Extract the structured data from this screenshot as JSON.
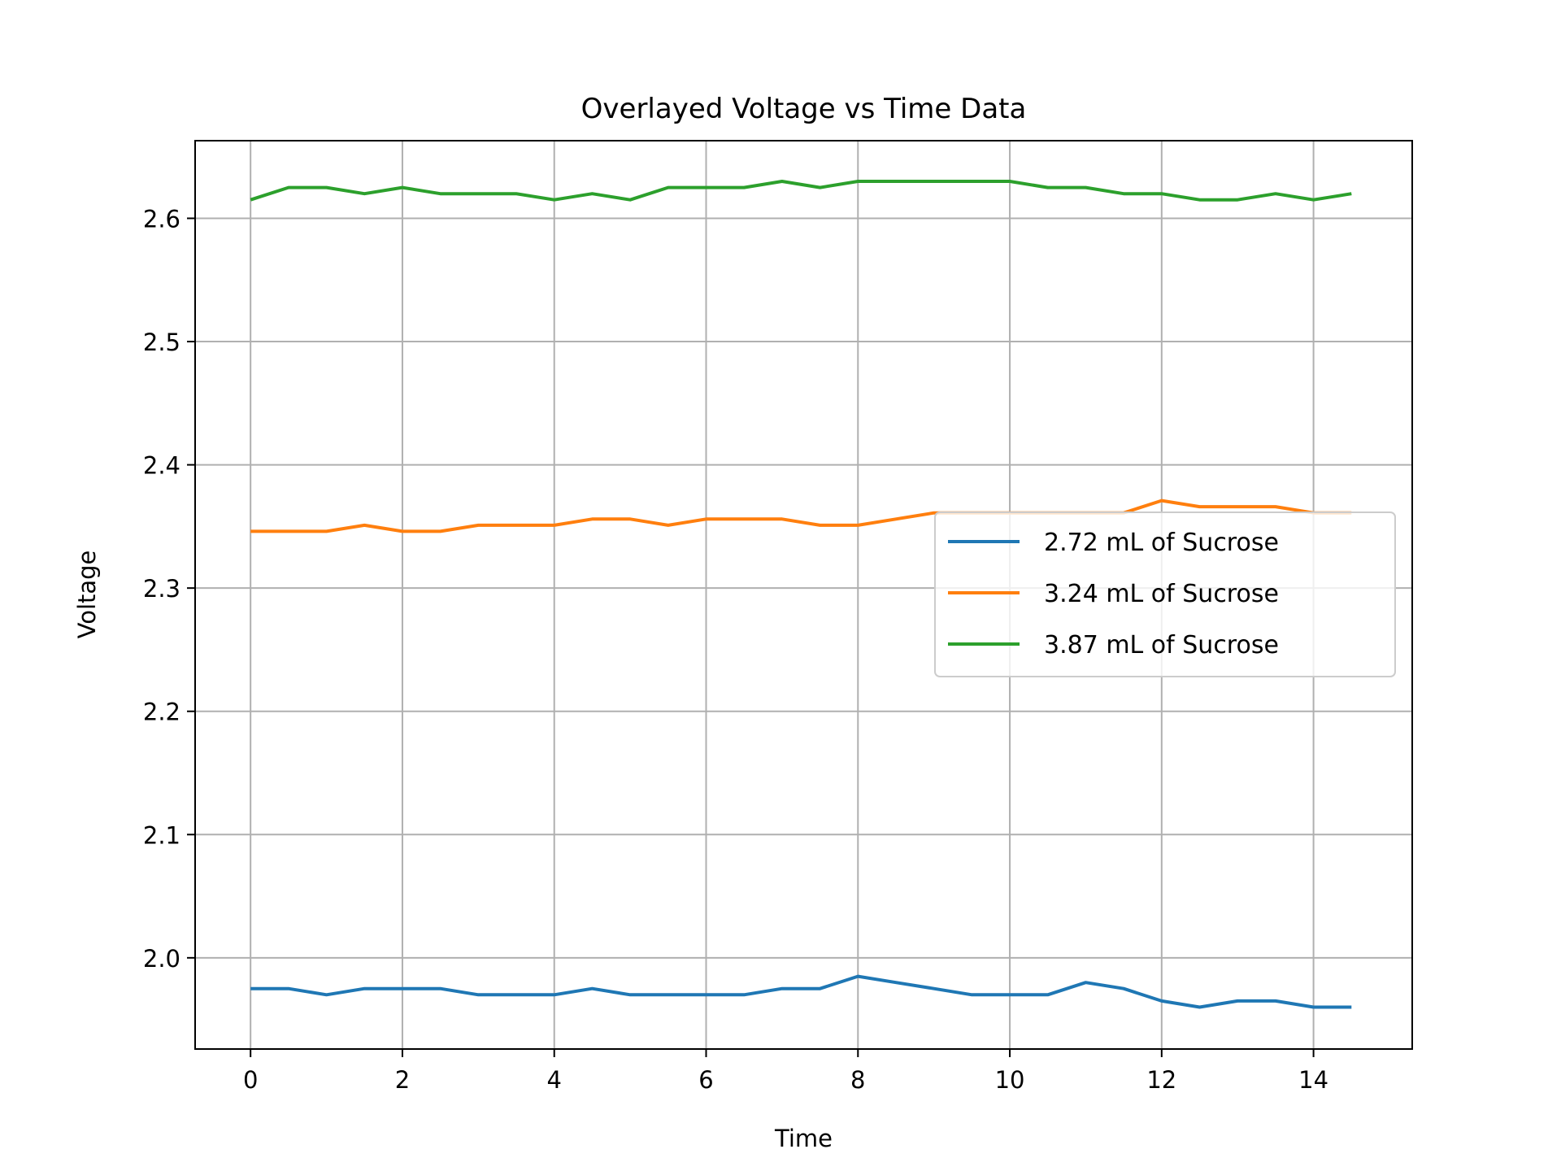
{
  "chart_data": {
    "type": "line",
    "title": "Overlayed Voltage vs Time Data",
    "xlabel": "Time",
    "ylabel": "Voltage",
    "xlim": [
      -0.73,
      15.3
    ],
    "ylim": [
      1.926,
      2.663
    ],
    "xticks": [
      0,
      2,
      4,
      6,
      8,
      10,
      12,
      14
    ],
    "xtick_labels": [
      "0",
      "2",
      "4",
      "6",
      "8",
      "10",
      "12",
      "14"
    ],
    "yticks": [
      2.0,
      2.1,
      2.2,
      2.3,
      2.4,
      2.5,
      2.6
    ],
    "ytick_labels": [
      "2.0",
      "2.1",
      "2.2",
      "2.3",
      "2.4",
      "2.5",
      "2.6"
    ],
    "grid": true,
    "legend_position": "center-right",
    "x": [
      0,
      0.5,
      1,
      1.5,
      2,
      2.5,
      3,
      3.5,
      4,
      4.5,
      5,
      5.5,
      6,
      6.5,
      7,
      7.5,
      8,
      8.5,
      9,
      9.5,
      10,
      10.5,
      11,
      11.5,
      12,
      12.5,
      13,
      13.5,
      14,
      14.5
    ],
    "series": [
      {
        "name": "2.72 mL of Sucrose",
        "color": "#1f77b4",
        "values": [
          1.975,
          1.975,
          1.97,
          1.975,
          1.975,
          1.975,
          1.97,
          1.97,
          1.97,
          1.975,
          1.97,
          1.97,
          1.97,
          1.97,
          1.975,
          1.975,
          1.985,
          1.98,
          1.975,
          1.97,
          1.97,
          1.97,
          1.98,
          1.975,
          1.965,
          1.96,
          1.965,
          1.965,
          1.96,
          1.96
        ]
      },
      {
        "name": "3.24 mL of Sucrose",
        "color": "#ff7f0e",
        "values": [
          2.346,
          2.346,
          2.346,
          2.351,
          2.346,
          2.346,
          2.351,
          2.351,
          2.351,
          2.356,
          2.356,
          2.351,
          2.356,
          2.356,
          2.356,
          2.351,
          2.351,
          2.356,
          2.361,
          2.361,
          2.361,
          2.361,
          2.361,
          2.361,
          2.371,
          2.366,
          2.366,
          2.366,
          2.361,
          2.361
        ]
      },
      {
        "name": "3.87 mL of Sucrose",
        "color": "#2ca02c",
        "values": [
          2.615,
          2.625,
          2.625,
          2.62,
          2.625,
          2.62,
          2.62,
          2.62,
          2.615,
          2.62,
          2.615,
          2.625,
          2.625,
          2.625,
          2.63,
          2.625,
          2.63,
          2.63,
          2.63,
          2.63,
          2.63,
          2.625,
          2.625,
          2.62,
          2.62,
          2.615,
          2.615,
          2.62,
          2.615,
          2.62
        ]
      }
    ]
  }
}
